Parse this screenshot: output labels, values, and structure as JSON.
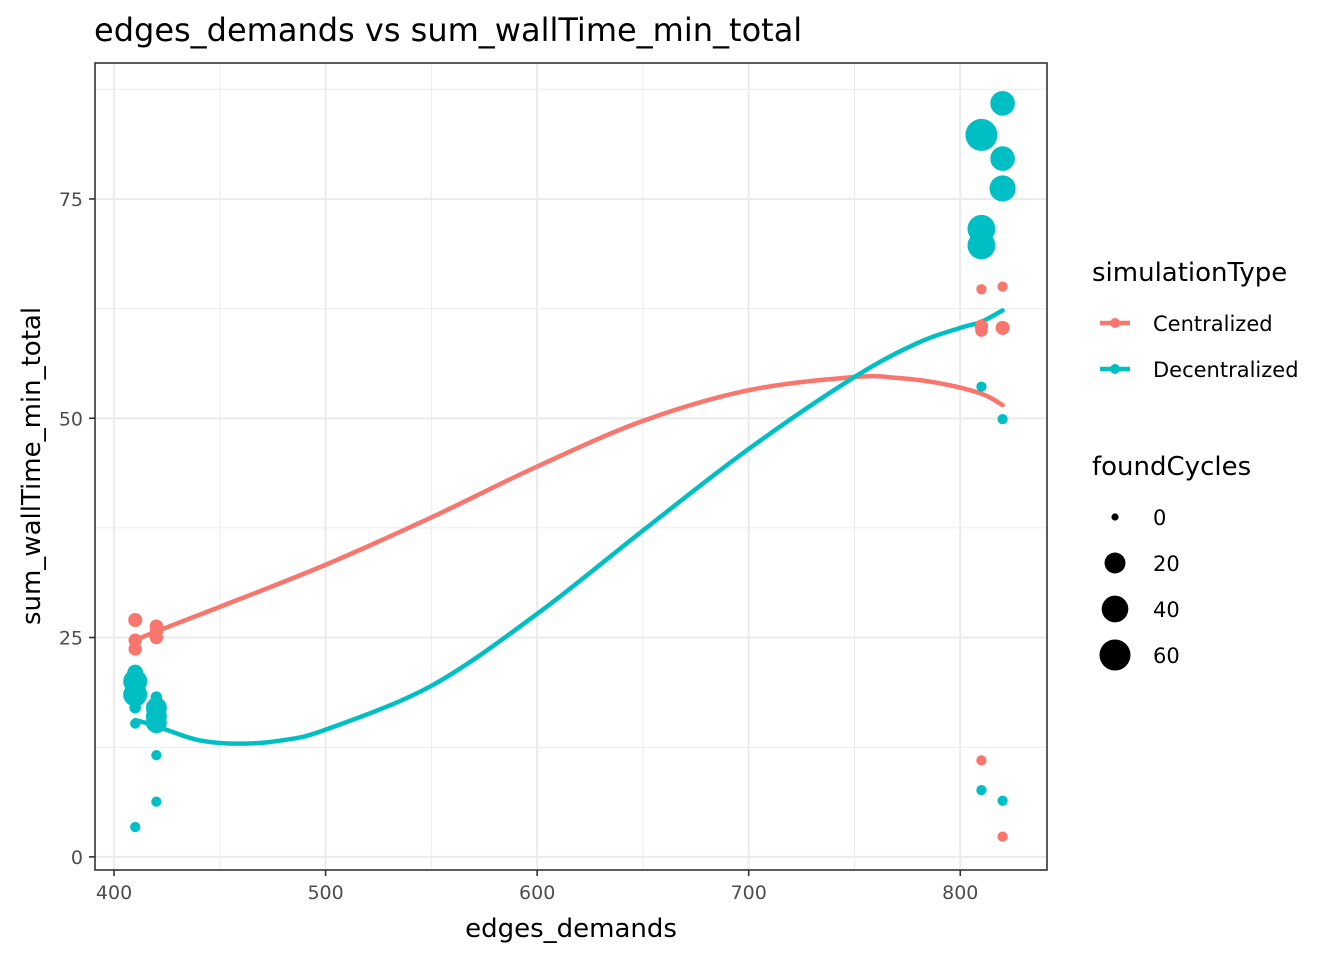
{
  "chart_data": {
    "type": "scatter",
    "title": "edges_demands  vs  sum_wallTime_min_total",
    "xlabel": "edges_demands",
    "ylabel": "sum_wallTime_min_total",
    "xlim": [
      391,
      841
    ],
    "ylim": [
      -1.5,
      90.5
    ],
    "x_ticks": [
      400,
      500,
      600,
      700,
      800
    ],
    "y_ticks": [
      0,
      25,
      50,
      75
    ],
    "grid": true,
    "legend_position": "right",
    "colors": {
      "Centralized": "#F8766D",
      "Decentralized": "#00BFC4"
    },
    "series": [
      {
        "name": "Centralized",
        "points": [
          {
            "x": 410,
            "y": 27.0,
            "size": 5
          },
          {
            "x": 410,
            "y": 24.7,
            "size": 4
          },
          {
            "x": 410,
            "y": 23.7,
            "size": 4
          },
          {
            "x": 410,
            "y": 21.0,
            "size": 2
          },
          {
            "x": 420,
            "y": 26.3,
            "size": 4
          },
          {
            "x": 420,
            "y": 25.7,
            "size": 4
          },
          {
            "x": 420,
            "y": 25.0,
            "size": 4
          },
          {
            "x": 810,
            "y": 64.7,
            "size": 1
          },
          {
            "x": 810,
            "y": 60.5,
            "size": 4
          },
          {
            "x": 810,
            "y": 60.0,
            "size": 3
          },
          {
            "x": 810,
            "y": 11.0,
            "size": 1
          },
          {
            "x": 820,
            "y": 65.0,
            "size": 1
          },
          {
            "x": 820,
            "y": 60.3,
            "size": 5
          },
          {
            "x": 820,
            "y": 2.3,
            "size": 1
          }
        ],
        "trend": [
          {
            "x": 410,
            "y": 24.7
          },
          {
            "x": 420,
            "y": 25.7
          },
          {
            "x": 450,
            "y": 28.5
          },
          {
            "x": 500,
            "y": 33.3
          },
          {
            "x": 550,
            "y": 38.7
          },
          {
            "x": 600,
            "y": 44.5
          },
          {
            "x": 650,
            "y": 49.7
          },
          {
            "x": 700,
            "y": 53.2
          },
          {
            "x": 750,
            "y": 54.7
          },
          {
            "x": 770,
            "y": 54.6
          },
          {
            "x": 790,
            "y": 54.0
          },
          {
            "x": 810,
            "y": 52.8
          },
          {
            "x": 820,
            "y": 51.5
          }
        ]
      },
      {
        "name": "Decentralized",
        "points": [
          {
            "x": 410,
            "y": 21.0,
            "size": 8
          },
          {
            "x": 410,
            "y": 20.0,
            "size": 30
          },
          {
            "x": 410,
            "y": 18.5,
            "size": 30
          },
          {
            "x": 410,
            "y": 17.0,
            "size": 2
          },
          {
            "x": 410,
            "y": 15.2,
            "size": 1
          },
          {
            "x": 410,
            "y": 3.4,
            "size": 1
          },
          {
            "x": 420,
            "y": 18.2,
            "size": 2
          },
          {
            "x": 420,
            "y": 17.0,
            "size": 20
          },
          {
            "x": 420,
            "y": 16.0,
            "size": 20
          },
          {
            "x": 420,
            "y": 15.3,
            "size": 20
          },
          {
            "x": 420,
            "y": 11.6,
            "size": 1
          },
          {
            "x": 420,
            "y": 6.3,
            "size": 1
          },
          {
            "x": 810,
            "y": 82.3,
            "size": 65
          },
          {
            "x": 810,
            "y": 71.6,
            "size": 45
          },
          {
            "x": 810,
            "y": 69.7,
            "size": 45
          },
          {
            "x": 810,
            "y": 53.6,
            "size": 1
          },
          {
            "x": 810,
            "y": 7.6,
            "size": 1
          },
          {
            "x": 820,
            "y": 85.9,
            "size": 32
          },
          {
            "x": 820,
            "y": 79.6,
            "size": 32
          },
          {
            "x": 820,
            "y": 76.2,
            "size": 38
          },
          {
            "x": 820,
            "y": 49.9,
            "size": 1
          },
          {
            "x": 820,
            "y": 6.4,
            "size": 1
          }
        ],
        "trend": [
          {
            "x": 410,
            "y": 15.6
          },
          {
            "x": 420,
            "y": 14.9
          },
          {
            "x": 440,
            "y": 13.3
          },
          {
            "x": 460,
            "y": 12.9
          },
          {
            "x": 480,
            "y": 13.3
          },
          {
            "x": 500,
            "y": 14.5
          },
          {
            "x": 550,
            "y": 19.5
          },
          {
            "x": 600,
            "y": 27.7
          },
          {
            "x": 650,
            "y": 37.2
          },
          {
            "x": 700,
            "y": 46.5
          },
          {
            "x": 750,
            "y": 54.7
          },
          {
            "x": 780,
            "y": 58.6
          },
          {
            "x": 800,
            "y": 60.3
          },
          {
            "x": 810,
            "y": 61.0
          },
          {
            "x": 820,
            "y": 62.3
          }
        ]
      }
    ],
    "legend": {
      "color_title": "simulationType",
      "color_entries": [
        "Centralized",
        "Decentralized"
      ],
      "size_title": "foundCycles",
      "size_entries": [
        "0",
        "20",
        "40",
        "60"
      ]
    }
  }
}
